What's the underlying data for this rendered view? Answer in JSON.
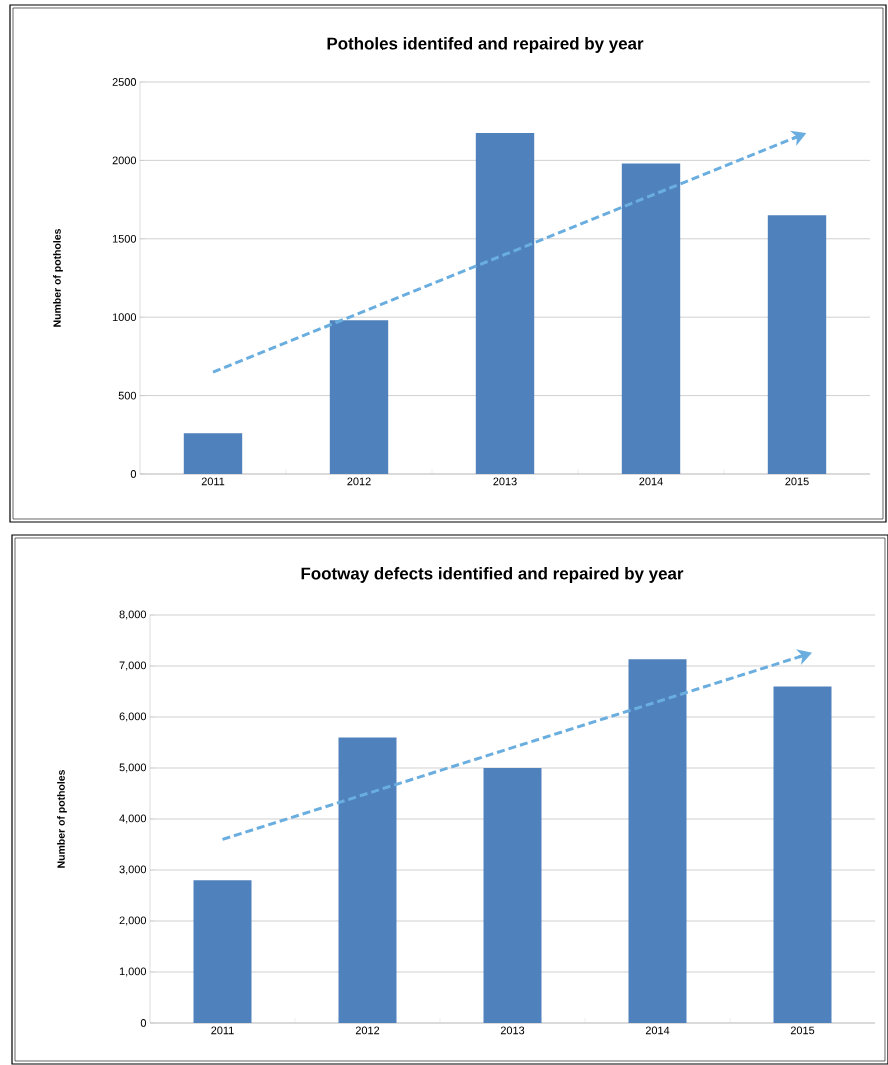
{
  "chart_data": [
    {
      "type": "bar",
      "title": "Potholes identifed and repaired by year",
      "ylabel": "Number of potholes",
      "categories": [
        "2011",
        "2012",
        "2013",
        "2014",
        "2015"
      ],
      "series": [
        {
          "type": "bar",
          "color": "#4f81bd",
          "values": [
            260,
            980,
            2175,
            1980,
            1650
          ]
        },
        {
          "type": "line",
          "color": "#6aaee0",
          "line_style": "dashed",
          "values": [
            650,
            1025,
            1400,
            1775,
            2150
          ]
        }
      ],
      "ylim": [
        0,
        2500
      ],
      "yticks": [
        0,
        500,
        1000,
        1500,
        2000,
        2500
      ],
      "grid": "y"
    },
    {
      "type": "bar",
      "title": "Footway defects identified and repaired by year",
      "ylabel": "Number of potholes",
      "categories": [
        "2011",
        "2012",
        "2013",
        "2014",
        "2015"
      ],
      "series": [
        {
          "type": "bar",
          "color": "#4f81bd",
          "values": [
            2800,
            5600,
            5000,
            7130,
            6600
          ]
        },
        {
          "type": "line",
          "color": "#6aaee0",
          "line_style": "dashed",
          "values": [
            3600,
            4500,
            5400,
            6300,
            7200
          ]
        }
      ],
      "ylim": [
        0,
        8000
      ],
      "yticks": [
        {
          "value": 0,
          "label": "0"
        },
        {
          "value": 1000,
          "label": "1,000"
        },
        {
          "value": 2000,
          "label": "2,000"
        },
        {
          "value": 3000,
          "label": "3,000"
        },
        {
          "value": 4000,
          "label": "4,000"
        },
        {
          "value": 5000,
          "label": "5,000"
        },
        {
          "value": 6000,
          "label": "6,000"
        },
        {
          "value": 7000,
          "label": "7,000"
        },
        {
          "value": 8000,
          "label": "8,000"
        }
      ],
      "grid": "y"
    }
  ]
}
